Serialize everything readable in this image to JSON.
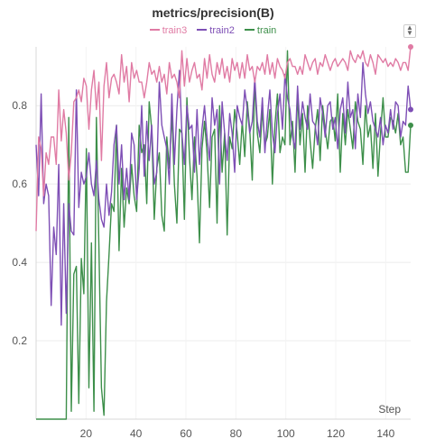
{
  "chart_data": {
    "type": "line",
    "title": "metrics/precision(B)",
    "xlabel": "Step",
    "ylabel": "",
    "xlim": [
      0,
      150
    ],
    "ylim": [
      0,
      0.95
    ],
    "x_ticks": [
      20,
      40,
      60,
      80,
      100,
      120,
      140
    ],
    "y_ticks": [
      0.2,
      0.4,
      0.6,
      0.8
    ],
    "grid": true,
    "legend_position": "top-center",
    "series": [
      {
        "name": "train3",
        "color": "#e07ba4",
        "values": [
          0.48,
          0.72,
          0.69,
          0.57,
          0.68,
          0.65,
          0.72,
          0.72,
          0.65,
          0.84,
          0.71,
          0.79,
          0.73,
          0.61,
          0.68,
          0.81,
          0.82,
          0.84,
          0.81,
          0.87,
          0.85,
          0.74,
          0.84,
          0.89,
          0.79,
          0.86,
          0.66,
          0.85,
          0.91,
          0.82,
          0.87,
          0.88,
          0.86,
          0.83,
          0.93,
          0.86,
          0.9,
          0.81,
          0.91,
          0.87,
          0.89,
          0.86,
          0.86,
          0.82,
          0.86,
          0.91,
          0.88,
          0.89,
          0.86,
          0.9,
          0.86,
          0.88,
          0.83,
          0.91,
          0.87,
          0.88,
          0.86,
          0.82,
          0.94,
          0.85,
          0.92,
          0.86,
          0.89,
          0.91,
          0.87,
          0.88,
          0.84,
          0.92,
          0.87,
          0.93,
          0.88,
          0.86,
          0.91,
          0.88,
          0.92,
          0.87,
          0.9,
          0.86,
          0.92,
          0.89,
          0.91,
          0.87,
          0.91,
          0.87,
          0.93,
          0.89,
          0.9,
          0.86,
          0.9,
          0.89,
          0.91,
          0.88,
          0.93,
          0.88,
          0.91,
          0.87,
          0.92,
          0.9,
          0.89,
          0.87,
          0.91,
          0.92,
          0.9,
          0.9,
          0.88,
          0.9,
          0.88,
          0.93,
          0.91,
          0.89,
          0.91,
          0.92,
          0.88,
          0.91,
          0.9,
          0.93,
          0.91,
          0.89,
          0.91,
          0.92,
          0.9,
          0.91,
          0.92,
          0.91,
          0.89,
          0.94,
          0.92,
          0.91,
          0.93,
          0.92,
          0.94,
          0.91,
          0.9,
          0.93,
          0.91,
          0.88,
          0.93,
          0.92,
          0.91,
          0.92,
          0.9,
          0.91,
          0.9,
          0.92,
          0.91,
          0.89,
          0.91,
          0.91,
          0.89,
          0.95
        ]
      },
      {
        "name": "train2",
        "color": "#7e4fb5",
        "values": [
          0.7,
          0.57,
          0.83,
          0.55,
          0.6,
          0.57,
          0.29,
          0.49,
          0.42,
          0.65,
          0.24,
          0.55,
          0.27,
          0.55,
          0.48,
          0.47,
          0.84,
          0.54,
          0.63,
          0.6,
          0.62,
          0.68,
          0.6,
          0.57,
          0.66,
          0.56,
          0.51,
          0.49,
          0.6,
          0.52,
          0.58,
          0.7,
          0.75,
          0.6,
          0.7,
          0.56,
          0.64,
          0.56,
          0.73,
          0.7,
          0.56,
          0.64,
          0.8,
          0.62,
          0.76,
          0.66,
          0.75,
          0.6,
          0.63,
          0.86,
          0.75,
          0.72,
          0.69,
          0.6,
          0.83,
          0.65,
          0.79,
          0.89,
          0.73,
          0.65,
          0.8,
          0.74,
          0.75,
          0.63,
          0.79,
          0.65,
          0.74,
          0.8,
          0.72,
          0.66,
          0.82,
          0.75,
          0.79,
          0.6,
          0.81,
          0.73,
          0.66,
          0.78,
          0.73,
          0.63,
          0.8,
          0.77,
          0.75,
          0.84,
          0.79,
          0.73,
          0.76,
          0.87,
          0.76,
          0.72,
          0.82,
          0.68,
          0.77,
          0.84,
          0.73,
          0.68,
          0.78,
          0.83,
          0.74,
          0.88,
          0.82,
          0.79,
          0.72,
          0.69,
          0.85,
          0.74,
          0.81,
          0.77,
          0.74,
          0.83,
          0.76,
          0.75,
          0.7,
          0.82,
          0.78,
          0.72,
          0.8,
          0.81,
          0.74,
          0.77,
          0.69,
          0.79,
          0.82,
          0.73,
          0.86,
          0.77,
          0.79,
          0.69,
          0.83,
          0.77,
          0.91,
          0.83,
          0.78,
          0.81,
          0.76,
          0.74,
          0.72,
          0.77,
          0.7,
          0.75,
          0.73,
          0.79,
          0.74,
          0.81,
          0.8,
          0.72,
          0.76,
          0.75,
          0.85,
          0.79
        ]
      },
      {
        "name": "train",
        "color": "#3d8f4a",
        "values": [
          0,
          0,
          0,
          0,
          0,
          0,
          0,
          0,
          0,
          0,
          0,
          0,
          0,
          0.77,
          0.02,
          0.37,
          0.39,
          0.04,
          0.41,
          0.32,
          0.69,
          0.08,
          0.45,
          0.02,
          0.77,
          0.44,
          0.08,
          0.01,
          0.3,
          0.42,
          0.55,
          0.53,
          0.75,
          0.43,
          0.64,
          0.49,
          0.59,
          0.55,
          0.65,
          0.57,
          0.53,
          0.75,
          0.68,
          0.7,
          0.55,
          0.81,
          0.74,
          0.51,
          0.64,
          0.68,
          0.52,
          0.48,
          0.72,
          0.64,
          0.78,
          0.6,
          0.5,
          0.74,
          0.73,
          0.51,
          0.82,
          0.67,
          0.56,
          0.72,
          0.62,
          0.45,
          0.69,
          0.76,
          0.68,
          0.54,
          0.72,
          0.74,
          0.5,
          0.8,
          0.63,
          0.73,
          0.47,
          0.72,
          0.69,
          0.79,
          0.73,
          0.65,
          0.76,
          0.67,
          0.81,
          0.74,
          0.61,
          0.86,
          0.73,
          0.68,
          0.79,
          0.7,
          0.72,
          0.79,
          0.6,
          0.75,
          0.83,
          0.68,
          0.72,
          0.7,
          0.94,
          0.7,
          0.76,
          0.63,
          0.83,
          0.7,
          0.78,
          0.63,
          0.8,
          0.71,
          0.64,
          0.74,
          0.79,
          0.66,
          0.8,
          0.74,
          0.69,
          0.76,
          0.77,
          0.71,
          0.83,
          0.63,
          0.78,
          0.7,
          0.79,
          0.74,
          0.69,
          0.81,
          0.76,
          0.74,
          0.65,
          0.8,
          0.72,
          0.75,
          0.64,
          0.78,
          0.62,
          0.73,
          0.82,
          0.72,
          0.72,
          0.77,
          0.76,
          0.73,
          0.78,
          0.7,
          0.72,
          0.63,
          0.63,
          0.75
        ]
      }
    ]
  }
}
